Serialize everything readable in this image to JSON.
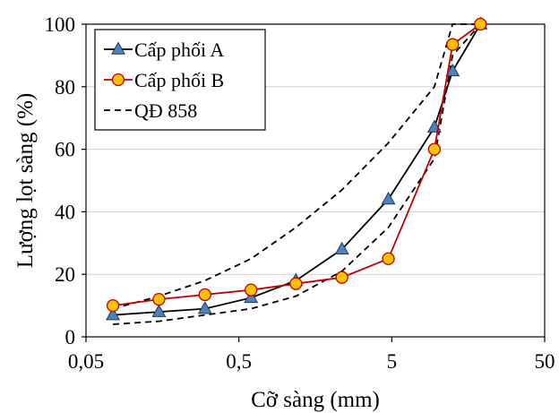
{
  "chart_data": {
    "type": "line",
    "title": "",
    "xlabel": "Cỡ sàng (mm)",
    "ylabel": "Lượng lọt sàng (%)",
    "x_scale": "log",
    "xlim": [
      0.05,
      50
    ],
    "ylim": [
      0,
      100
    ],
    "x_ticks": [
      0.05,
      0.5,
      5,
      50
    ],
    "x_tick_labels": [
      "0,05",
      "0,5",
      "5",
      "50"
    ],
    "y_ticks": [
      0,
      20,
      40,
      60,
      80,
      100
    ],
    "y_tick_labels": [
      "0",
      "20",
      "40",
      "60",
      "80",
      "100"
    ],
    "grid": "horizontal",
    "legend_position": "top-left",
    "series": [
      {
        "name": "Cấp phối A",
        "color": "#000000",
        "marker": "triangle",
        "marker_color": "#4f81bd",
        "line_style": "solid",
        "x": [
          0.075,
          0.15,
          0.3,
          0.6,
          1.18,
          2.36,
          4.75,
          9.5,
          12.5,
          19
        ],
        "y": [
          7,
          8,
          9,
          12.5,
          18,
          28,
          44,
          67,
          85,
          100
        ]
      },
      {
        "name": "Cấp phối B",
        "color": "#c00000",
        "marker": "circle",
        "marker_color": "#ffc000",
        "line_style": "solid",
        "x": [
          0.075,
          0.15,
          0.3,
          0.6,
          1.18,
          2.36,
          4.75,
          9.5,
          12.5,
          19
        ],
        "y": [
          10,
          12,
          13.5,
          15,
          17,
          19,
          25,
          60,
          93.5,
          100
        ]
      },
      {
        "name": "QĐ 858",
        "color": "#000000",
        "marker": "none",
        "line_style": "dashed",
        "x": [
          0.075,
          0.15,
          0.3,
          0.6,
          1.18,
          2.36,
          4.75,
          9.5,
          12.5,
          19
        ],
        "y_lower": [
          4,
          5,
          7,
          9,
          13,
          21,
          35,
          57,
          90,
          100
        ],
        "y_upper": [
          9,
          13,
          18,
          25,
          35,
          47,
          62,
          80,
          100,
          100
        ]
      }
    ]
  }
}
